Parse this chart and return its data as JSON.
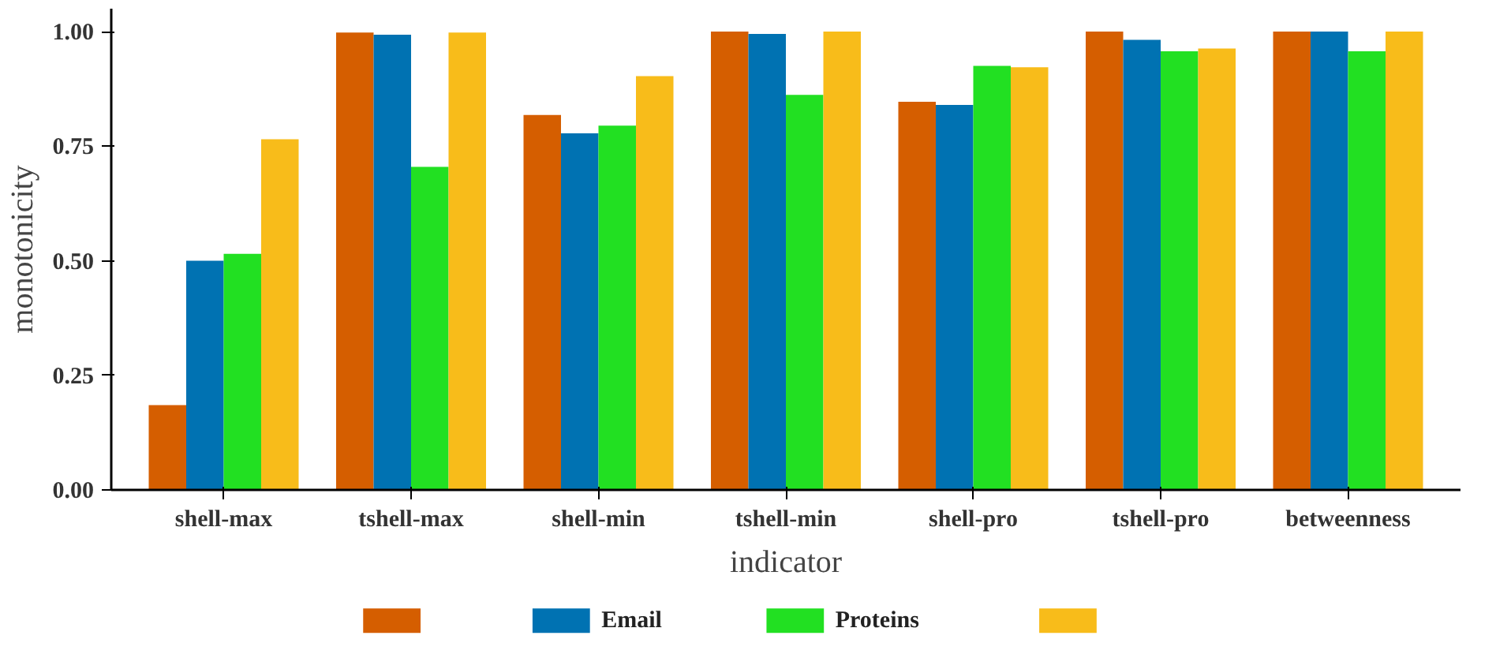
{
  "chart_data": {
    "type": "bar",
    "xlabel": "indicator",
    "ylabel": "monotonicity",
    "categories": [
      "shell-max",
      "tshell-max",
      "shell-min",
      "tshell-min",
      "shell-pro",
      "tshell-pro",
      "betweenness"
    ],
    "ylim": [
      0,
      1.05
    ],
    "yticks": [
      {
        "value": 0,
        "label": "0.00"
      },
      {
        "value": 0.25,
        "label": "0.25"
      },
      {
        "value": 0.5,
        "label": "0.50"
      },
      {
        "value": 0.75,
        "label": "0.75"
      },
      {
        "value": 1,
        "label": "1.00"
      }
    ],
    "grid": false,
    "legend": "bottom",
    "series": [
      {
        "color": "#d55e00",
        "values": [
          0.185,
          0.998,
          0.818,
          1.0,
          0.847,
          1.0,
          1.0
        ]
      },
      {
        "name": "Email",
        "color": "#0072b2",
        "values": [
          0.5,
          0.993,
          0.778,
          0.995,
          0.84,
          0.982,
          1.0
        ]
      },
      {
        "name": "Proteins",
        "color": "#22e022",
        "values": [
          0.515,
          0.705,
          0.795,
          0.862,
          0.925,
          0.957,
          0.957
        ]
      },
      {
        "color": "#f8bc1a",
        "values": [
          0.765,
          0.998,
          0.903,
          1.0,
          0.922,
          0.963,
          1.0
        ]
      }
    ]
  }
}
